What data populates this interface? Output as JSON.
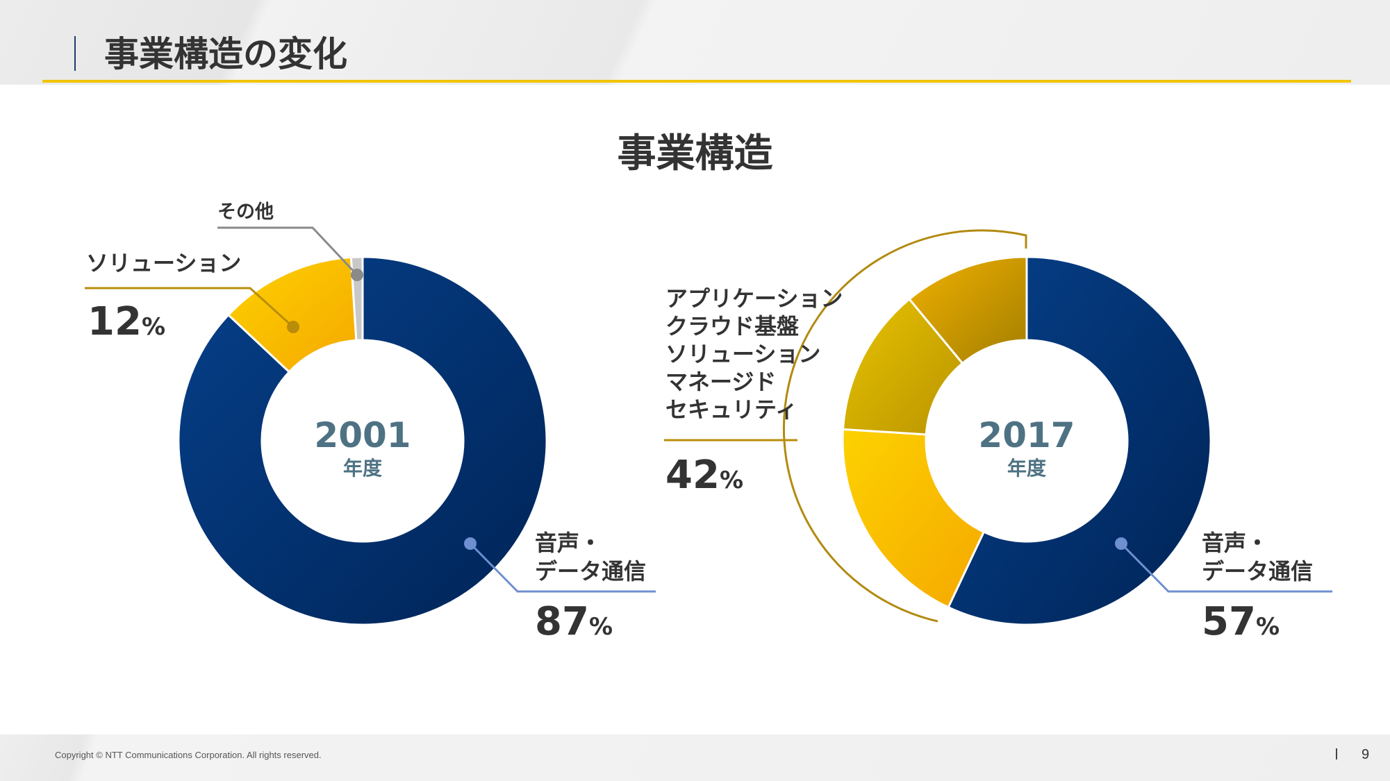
{
  "header": {
    "title": "事業構造の変化"
  },
  "footer": {
    "copyright": "Copyright © NTT Communications Corporation. All rights reserved.",
    "page_number": "9"
  },
  "colors": {
    "navy_light": "#06408a",
    "navy_dark": "#002457",
    "gold_light": "#fdd200",
    "gold_dark": "#f5a800",
    "olive_light": "#e8c300",
    "olive_dark": "#b99400",
    "bronze_light": "#f1b100",
    "bronze_dark": "#a27e00",
    "gray": "#c8c8c8",
    "label_blue": "#4e7283",
    "bracket": "#b28a10",
    "leader_navy": "#6e8fd0",
    "leader_gold": "#b98d0a",
    "leader_gray": "#8a8a8a"
  },
  "chart_data": {
    "title": "事業構造",
    "pies": [
      {
        "type": "pie",
        "center_label": "2001",
        "center_sublabel": "年度",
        "slices": [
          {
            "name": "音声・データ通信",
            "value": 87,
            "color_key": "navy"
          },
          {
            "name": "ソリューション",
            "value": 12,
            "color_key": "gold"
          },
          {
            "name": "その他",
            "value": 1,
            "color_key": "gray"
          }
        ]
      },
      {
        "type": "pie",
        "center_label": "2017",
        "center_sublabel": "年度",
        "slices": [
          {
            "name": "音声・データ通信",
            "value": 57,
            "color_key": "navy"
          },
          {
            "name": "",
            "value": 19,
            "color_key": "gold"
          },
          {
            "name": "",
            "value": 13,
            "color_key": "olive"
          },
          {
            "name": "",
            "value": 11,
            "color_key": "bronze"
          }
        ]
      }
    ],
    "annotations": [
      {
        "chart": 0,
        "lines": [
          "その他"
        ],
        "value": "",
        "unit": ""
      },
      {
        "chart": 0,
        "lines": [
          "ソリューション"
        ],
        "value": "12",
        "unit": "%"
      },
      {
        "chart": 0,
        "lines": [
          "音声・",
          "データ通信"
        ],
        "value": "87",
        "unit": "%"
      },
      {
        "chart": 1,
        "lines": [
          "アプリケーション",
          "クラウド基盤",
          "ソリューション",
          "マネージド",
          "セキュリティ"
        ],
        "value": "42",
        "unit": "%"
      },
      {
        "chart": 1,
        "lines": [
          "音声・",
          "データ通信"
        ],
        "value": "57",
        "unit": "%"
      }
    ]
  }
}
